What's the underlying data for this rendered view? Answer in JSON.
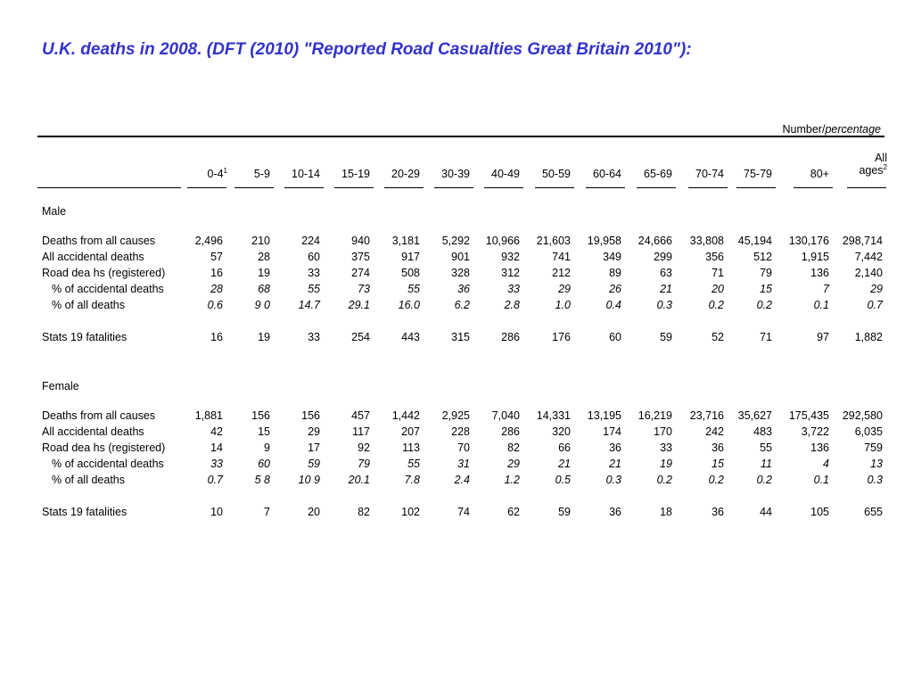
{
  "title": "U.K. deaths in 2008. (DFT (2010) \"Reported Road Casualties Great Britain 2010\"):",
  "unit": {
    "number": "Number/",
    "percentage": "percentage"
  },
  "columns": [
    {
      "label": "0-4",
      "note": "1"
    },
    {
      "label": "5-9"
    },
    {
      "label": "10-14"
    },
    {
      "label": "15-19"
    },
    {
      "label": "20-29"
    },
    {
      "label": "30-39"
    },
    {
      "label": "40-49"
    },
    {
      "label": "50-59"
    },
    {
      "label": "60-64"
    },
    {
      "label": "65-69"
    },
    {
      "label": "70-74"
    },
    {
      "label": "75-79"
    },
    {
      "label": "80+"
    },
    {
      "label": "All ages",
      "note": "2"
    }
  ],
  "sections": [
    {
      "name": "Male",
      "rows": [
        {
          "label": "Deaths from all causes",
          "values": [
            "2,496",
            "210",
            "224",
            "940",
            "3,181",
            "5,292",
            "10,966",
            "21,603",
            "19,958",
            "24,666",
            "33,808",
            "45,194",
            "130,176",
            "298,714"
          ]
        },
        {
          "label": "All accidental deaths",
          "values": [
            "57",
            "28",
            "60",
            "375",
            "917",
            "901",
            "932",
            "741",
            "349",
            "299",
            "356",
            "512",
            "1,915",
            "7,442"
          ]
        },
        {
          "label": "Road dea hs (registered)",
          "values": [
            "16",
            "19",
            "33",
            "274",
            "508",
            "328",
            "312",
            "212",
            "89",
            "63",
            "71",
            "79",
            "136",
            "2,140"
          ]
        },
        {
          "label": "% of accidental deaths",
          "values": [
            "28",
            "68",
            "55",
            "73",
            "55",
            "36",
            "33",
            "29",
            "26",
            "21",
            "20",
            "15",
            "7",
            "29"
          ]
        },
        {
          "label": "% of all deaths",
          "values": [
            "0.6",
            "9 0",
            "14.7",
            "29.1",
            "16.0",
            "6.2",
            "2.8",
            "1.0",
            "0.4",
            "0.3",
            "0.2",
            "0.2",
            "0.1",
            "0.7"
          ]
        },
        {
          "label": "Stats 19 fatalities",
          "values": [
            "16",
            "19",
            "33",
            "254",
            "443",
            "315",
            "286",
            "176",
            "60",
            "59",
            "52",
            "71",
            "97",
            "1,882"
          ]
        }
      ]
    },
    {
      "name": "Female",
      "rows": [
        {
          "label": "Deaths from all causes",
          "values": [
            "1,881",
            "156",
            "156",
            "457",
            "1,442",
            "2,925",
            "7,040",
            "14,331",
            "13,195",
            "16,219",
            "23,716",
            "35,627",
            "175,435",
            "292,580"
          ]
        },
        {
          "label": "All accidental deaths",
          "values": [
            "42",
            "15",
            "29",
            "117",
            "207",
            "228",
            "286",
            "320",
            "174",
            "170",
            "242",
            "483",
            "3,722",
            "6,035"
          ]
        },
        {
          "label": "Road dea hs (registered)",
          "values": [
            "14",
            "9",
            "17",
            "92",
            "113",
            "70",
            "82",
            "66",
            "36",
            "33",
            "36",
            "55",
            "136",
            "759"
          ]
        },
        {
          "label": "% of accidental deaths",
          "values": [
            "33",
            "60",
            "59",
            "79",
            "55",
            "31",
            "29",
            "21",
            "21",
            "19",
            "15",
            "11",
            "4",
            "13"
          ]
        },
        {
          "label": "% of all deaths",
          "values": [
            "0.7",
            "5 8",
            "10 9",
            "20.1",
            "7.8",
            "2.4",
            "1.2",
            "0.5",
            "0.3",
            "0.2",
            "0.2",
            "0.2",
            "0.1",
            "0.3"
          ]
        },
        {
          "label": "Stats 19 fatalities",
          "values": [
            "10",
            "7",
            "20",
            "82",
            "102",
            "74",
            "62",
            "59",
            "36",
            "18",
            "36",
            "44",
            "105",
            "655"
          ]
        }
      ]
    }
  ]
}
